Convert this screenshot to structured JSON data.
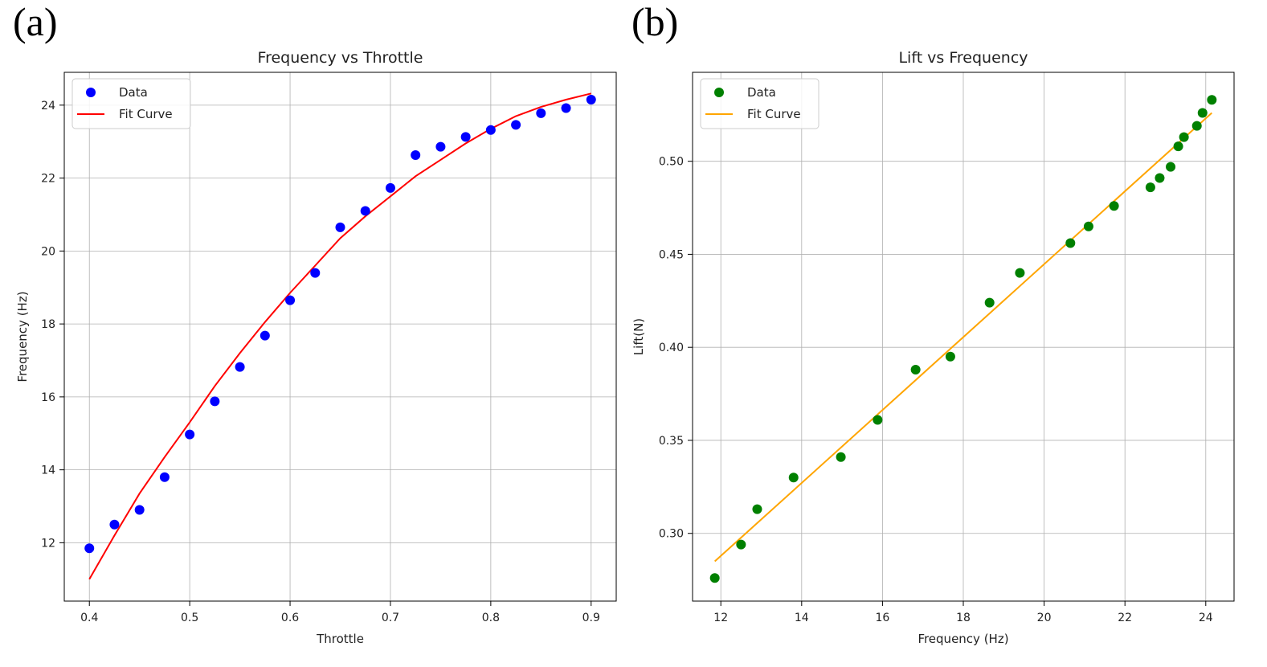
{
  "panels": {
    "a_label": "(a)",
    "b_label": "(b)"
  },
  "chart_data": [
    {
      "type": "scatter",
      "title": "Frequency vs Throttle",
      "xlabel": "Throttle",
      "ylabel": "Frequency (Hz)",
      "xlim": [
        0.375,
        0.925
      ],
      "ylim": [
        10.4,
        24.9
      ],
      "xticks": [
        0.4,
        0.5,
        0.6,
        0.7,
        0.8,
        0.9
      ],
      "xtick_labels": [
        "0.4",
        "0.5",
        "0.6",
        "0.7",
        "0.8",
        "0.9"
      ],
      "yticks": [
        12,
        14,
        16,
        18,
        20,
        22,
        24
      ],
      "ytick_labels": [
        "12",
        "14",
        "16",
        "18",
        "20",
        "22",
        "24"
      ],
      "grid": true,
      "legend": {
        "position": "top-left",
        "entries": [
          "Data",
          "Fit Curve"
        ]
      },
      "series": [
        {
          "name": "Data",
          "kind": "scatter",
          "color": "#0000ff",
          "x": [
            0.4,
            0.425,
            0.45,
            0.475,
            0.5,
            0.525,
            0.55,
            0.575,
            0.6,
            0.625,
            0.65,
            0.675,
            0.7,
            0.725,
            0.75,
            0.775,
            0.8,
            0.825,
            0.85,
            0.875,
            0.9
          ],
          "y": [
            11.85,
            12.5,
            12.9,
            13.8,
            14.97,
            15.88,
            16.82,
            17.68,
            18.65,
            19.4,
            20.65,
            21.1,
            21.73,
            22.63,
            22.86,
            23.13,
            23.32,
            23.46,
            23.78,
            23.92,
            24.15
          ]
        },
        {
          "name": "Fit Curve",
          "kind": "line",
          "color": "#ff0000",
          "x": [
            0.4,
            0.425,
            0.45,
            0.475,
            0.5,
            0.525,
            0.55,
            0.575,
            0.6,
            0.625,
            0.65,
            0.675,
            0.7,
            0.725,
            0.75,
            0.775,
            0.8,
            0.825,
            0.85,
            0.875,
            0.9
          ],
          "y": [
            11.0,
            12.2,
            13.35,
            14.35,
            15.3,
            16.3,
            17.2,
            18.05,
            18.85,
            19.6,
            20.35,
            20.95,
            21.5,
            22.05,
            22.5,
            22.95,
            23.35,
            23.7,
            23.95,
            24.15,
            24.32
          ]
        }
      ]
    },
    {
      "type": "scatter",
      "title": "Lift vs Frequency",
      "xlabel": "Frequency (Hz)",
      "ylabel": "Lift(N)",
      "xlim": [
        11.3,
        24.7
      ],
      "ylim": [
        0.2636,
        0.5478
      ],
      "xticks": [
        12,
        14,
        16,
        18,
        20,
        22,
        24
      ],
      "xtick_labels": [
        "12",
        "14",
        "16",
        "18",
        "20",
        "22",
        "24"
      ],
      "yticks": [
        0.3,
        0.35,
        0.4,
        0.45,
        0.5
      ],
      "ytick_labels": [
        "0.30",
        "0.35",
        "0.40",
        "0.45",
        "0.50"
      ],
      "grid": true,
      "legend": {
        "position": "top-left",
        "entries": [
          "Data",
          "Fit Curve"
        ]
      },
      "series": [
        {
          "name": "Data",
          "kind": "scatter",
          "color": "#008000",
          "x": [
            11.85,
            12.5,
            12.9,
            13.8,
            14.97,
            15.88,
            16.82,
            17.68,
            18.65,
            19.4,
            20.65,
            21.1,
            21.73,
            22.63,
            22.86,
            23.13,
            23.32,
            23.46,
            23.78,
            23.92,
            24.15
          ],
          "y": [
            0.276,
            0.294,
            0.313,
            0.33,
            0.341,
            0.361,
            0.388,
            0.395,
            0.424,
            0.44,
            0.456,
            0.465,
            0.476,
            0.486,
            0.491,
            0.497,
            0.508,
            0.513,
            0.519,
            0.526,
            0.533
          ]
        },
        {
          "name": "Fit Curve",
          "kind": "line",
          "color": "#ffa500",
          "x": [
            11.85,
            24.15
          ],
          "y": [
            0.285,
            0.526
          ]
        }
      ]
    }
  ]
}
